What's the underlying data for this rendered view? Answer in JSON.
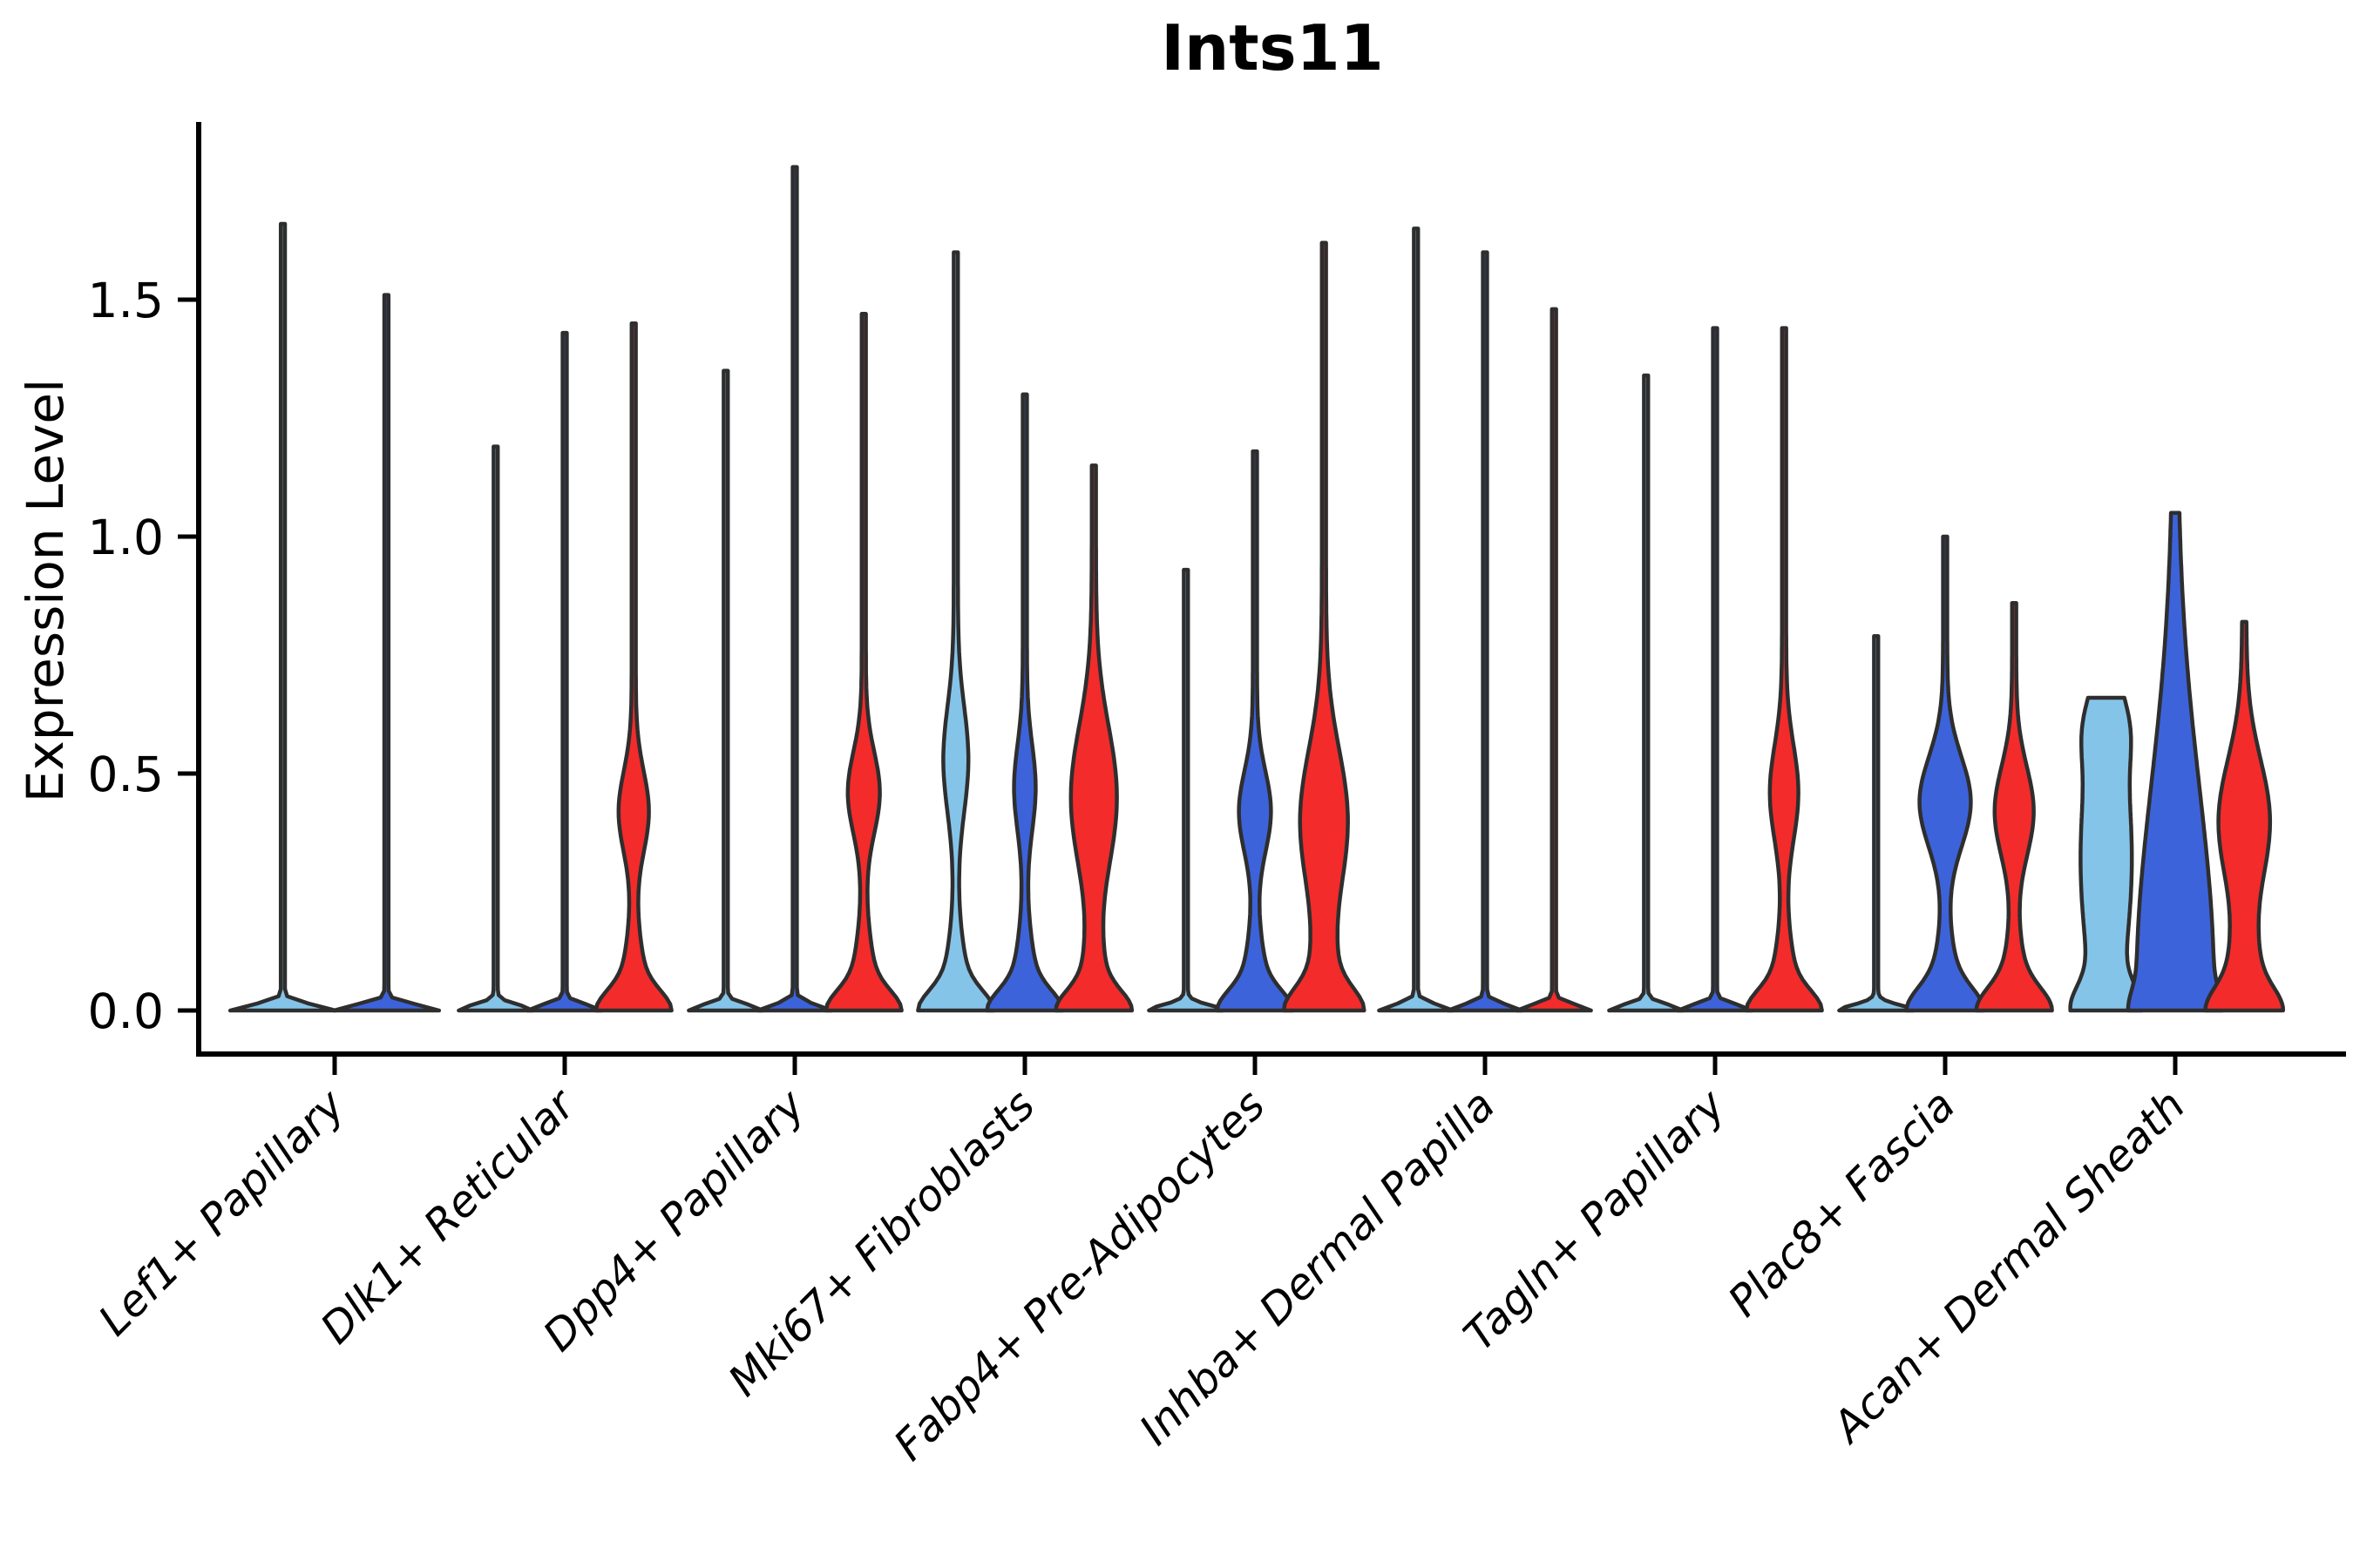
{
  "title": "Ints11",
  "y_axis": {
    "label": "Expression Level"
  },
  "colors": {
    "lightblue": "#85C4E9",
    "blue": "#3D63DB",
    "red": "#F32B2B",
    "outline": "#2E2E2E",
    "axis": "#000000"
  },
  "chart_data": {
    "type": "violin",
    "title": "Ints11",
    "xlabel": "",
    "ylabel": "Expression Level",
    "ylim": [
      0,
      1.87
    ],
    "y_ticks": [
      {
        "value": 0.0,
        "label": "0.0"
      },
      {
        "value": 0.5,
        "label": "0.5"
      },
      {
        "value": 1.0,
        "label": "1.0"
      },
      {
        "value": 1.5,
        "label": "1.5"
      }
    ],
    "grid": false,
    "legend": "none",
    "categories": [
      "Lef1+ Papillary",
      "Dlk1+ Reticular",
      "Dpp4+ Papillary",
      "Mki67+ Fibroblasts",
      "Fabp4+ Pre-Adipocytes",
      "Inhba+ Dermal Papilla",
      "Tagln+ Papillary",
      "Plac8+ Fascia",
      "Acan+ Dermal Sheath"
    ],
    "series_note": "each group holds dodged violins; peak = max expression; bumps = [center,sd,halfwidth_px] density lobes; thin spike-only violins have a flat base lens",
    "groups": [
      {
        "category": "Lef1+ Papillary",
        "violins": [
          {
            "color": "lightblue",
            "peak": 1.66,
            "bumps": [
              [
                0,
                0.012,
                58
              ]
            ]
          },
          {
            "color": "blue",
            "peak": 1.51,
            "bumps": [
              [
                0,
                0.012,
                58
              ]
            ]
          }
        ]
      },
      {
        "category": "Dlk1+ Reticular",
        "violins": [
          {
            "color": "lightblue",
            "peak": 1.19,
            "bumps": [
              [
                0,
                0.012,
                40
              ]
            ]
          },
          {
            "color": "blue",
            "peak": 1.43,
            "bumps": [
              [
                0,
                0.012,
                40
              ]
            ]
          },
          {
            "color": "red",
            "peak": 1.45,
            "bumps": [
              [
                0,
                0.04,
                27
              ],
              [
                0,
                0.11,
                14
              ],
              [
                0.42,
                0.085,
                15
              ]
            ]
          }
        ]
      },
      {
        "category": "Dpp4+ Papillary",
        "violins": [
          {
            "color": "lightblue",
            "peak": 1.35,
            "bumps": [
              [
                0,
                0.012,
                40
              ]
            ]
          },
          {
            "color": "blue",
            "peak": 1.78,
            "bumps": [
              [
                0,
                0.012,
                40
              ]
            ]
          },
          {
            "color": "red",
            "peak": 1.47,
            "bumps": [
              [
                0,
                0.04,
                27
              ],
              [
                0,
                0.11,
                14
              ],
              [
                0.46,
                0.085,
                16
              ]
            ]
          }
        ]
      },
      {
        "category": "Mki67+ Fibroblasts",
        "violins": [
          {
            "color": "lightblue",
            "peak": 1.6,
            "bumps": [
              [
                0,
                0.04,
                27
              ],
              [
                0,
                0.11,
                14
              ],
              [
                0.53,
                0.11,
                12
              ]
            ]
          },
          {
            "color": "blue",
            "peak": 1.3,
            "bumps": [
              [
                0,
                0.04,
                27
              ],
              [
                0,
                0.11,
                14
              ],
              [
                0.47,
                0.09,
                10
              ]
            ]
          },
          {
            "color": "red",
            "peak": 1.15,
            "bumps": [
              [
                0,
                0.04,
                27
              ],
              [
                0,
                0.11,
                14
              ],
              [
                0.45,
                0.15,
                24
              ]
            ]
          }
        ]
      },
      {
        "category": "Fabp4+ Pre-Adipocytes",
        "violins": [
          {
            "color": "lightblue",
            "peak": 0.93,
            "bumps": [
              [
                0,
                0.012,
                40
              ]
            ]
          },
          {
            "color": "blue",
            "peak": 1.18,
            "bumps": [
              [
                0,
                0.04,
                27
              ],
              [
                0,
                0.11,
                14
              ],
              [
                0.42,
                0.085,
                16
              ]
            ]
          },
          {
            "color": "red",
            "peak": 1.62,
            "bumps": [
              [
                0,
                0.045,
                28
              ],
              [
                0,
                0.12,
                15
              ],
              [
                0.4,
                0.15,
                25
              ]
            ]
          }
        ]
      },
      {
        "category": "Inhba+ Dermal Papilla",
        "violins": [
          {
            "color": "lightblue",
            "peak": 1.65,
            "bumps": [
              [
                0,
                0.012,
                40
              ]
            ]
          },
          {
            "color": "blue",
            "peak": 1.6,
            "bumps": [
              [
                0,
                0.012,
                40
              ]
            ]
          },
          {
            "color": "red",
            "peak": 1.48,
            "bumps": [
              [
                0,
                0.012,
                40
              ]
            ]
          }
        ]
      },
      {
        "category": "Tagln+ Papillary",
        "violins": [
          {
            "color": "lightblue",
            "peak": 1.34,
            "bumps": [
              [
                0,
                0.012,
                40
              ]
            ]
          },
          {
            "color": "blue",
            "peak": 1.44,
            "bumps": [
              [
                0,
                0.012,
                40
              ]
            ]
          },
          {
            "color": "red",
            "peak": 1.44,
            "bumps": [
              [
                0,
                0.04,
                27
              ],
              [
                0,
                0.11,
                14
              ],
              [
                0.46,
                0.1,
                14
              ]
            ]
          }
        ]
      },
      {
        "category": "Plac8+ Fascia",
        "violins": [
          {
            "color": "lightblue",
            "peak": 0.79,
            "bumps": [
              [
                0,
                0.012,
                40
              ]
            ]
          },
          {
            "color": "blue",
            "peak": 1.0,
            "bumps": [
              [
                0,
                0.045,
                27
              ],
              [
                0,
                0.11,
                15
              ],
              [
                0.44,
                0.095,
                27
              ]
            ]
          },
          {
            "color": "red",
            "peak": 0.86,
            "bumps": [
              [
                0,
                0.045,
                27
              ],
              [
                0,
                0.11,
                14
              ],
              [
                0.42,
                0.095,
                20
              ]
            ]
          }
        ]
      },
      {
        "category": "Acan+ Dermal Sheath",
        "violins": [
          {
            "color": "lightblue",
            "peak": 0.66,
            "bumps": [
              [
                0,
                0.05,
                26
              ],
              [
                0.32,
                0.26,
                27
              ],
              [
                0.6,
                0.07,
                10
              ]
            ]
          },
          {
            "color": "blue",
            "peak": 1.05,
            "bumps": [
              [
                0,
                0.04,
                10
              ],
              [
                0.05,
                0.42,
                42
              ]
            ]
          },
          {
            "color": "red",
            "peak": 0.82,
            "bumps": [
              [
                0,
                0.045,
                22
              ],
              [
                0,
                0.13,
                20
              ],
              [
                0.4,
                0.13,
                27
              ]
            ]
          }
        ]
      }
    ]
  }
}
